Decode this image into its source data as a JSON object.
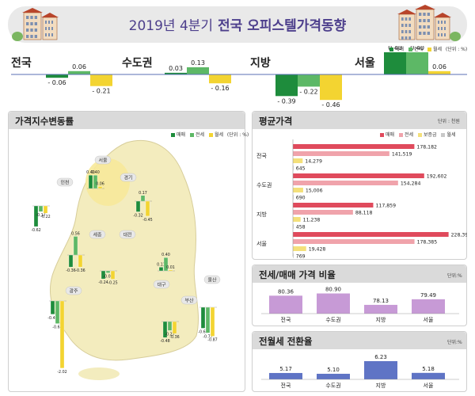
{
  "header": {
    "title_year": "2019년 4분기",
    "title_main": "전국 오피스텔가격동향"
  },
  "colors": {
    "sale": "#1e8c3c",
    "jeonse": "#5db866",
    "monthly": "#f3d431",
    "deposit": "#f4e07a",
    "rent": "#c8c8c8",
    "avg_sale": "#e04a5c",
    "avg_jeonse": "#f0a3ab",
    "ratio_bar": "#c79ad6",
    "conv_bar": "#5f74c5",
    "map_fill": "#f3ecbe"
  },
  "top_summary": [
    {
      "region": "전국",
      "values": [
        -0.06,
        0.06,
        -0.21
      ],
      "labels": [
        "- 0.06",
        "0.06",
        "- 0.21"
      ]
    },
    {
      "region": "수도권",
      "values": [
        0.03,
        0.13,
        -0.16
      ],
      "labels": [
        "0.03",
        "0.13",
        "- 0.16"
      ]
    },
    {
      "region": "지방",
      "values": [
        -0.39,
        -0.22,
        -0.46
      ],
      "labels": [
        "- 0.39",
        "- 0.22",
        "- 0.46"
      ]
    },
    {
      "region": "서울",
      "values": [
        0.4,
        0.4,
        0.06
      ],
      "labels": [
        "0.40",
        "0.40",
        "0.06"
      ]
    }
  ],
  "top_legend": [
    "매매",
    "전세",
    "월세"
  ],
  "top_unit": "(단위 : %)",
  "map_panel": {
    "title": "가격지수변동률",
    "legend": [
      "매매",
      "전세",
      "월세"
    ],
    "unit": "(단위 : %)",
    "regions": [
      {
        "name": "서울",
        "values": [
          0.4,
          0.4,
          0.06
        ],
        "labels": [
          "0.40",
          "0.40",
          "0.06"
        ]
      },
      {
        "name": "인천",
        "values": [
          -0.62,
          -0.17,
          -0.22
        ],
        "labels": [
          "-0.62",
          "-0.17",
          "-0.22"
        ]
      },
      {
        "name": "경기",
        "values": [
          -0.32,
          0.17,
          -0.45
        ],
        "labels": [
          "-0.32",
          "0.17",
          "-0.45"
        ]
      },
      {
        "name": "세종",
        "values": [
          -0.36,
          0.56,
          -0.36
        ],
        "labels": [
          "-0.36",
          "0.56",
          "-0.36"
        ]
      },
      {
        "name": "대전",
        "values": [
          -0.24,
          -0.06,
          -0.25
        ],
        "labels": [
          "-0.24",
          "-0.06",
          "-0.25"
        ]
      },
      {
        "name": "대구",
        "values": [
          0.11,
          0.4,
          0.01
        ],
        "labels": [
          "0.11",
          "0.40",
          "0.01"
        ]
      },
      {
        "name": "광주",
        "values": [
          -0.4,
          -0.68,
          -2.02
        ],
        "labels": [
          "-0.40",
          "-0.68",
          "-2.02"
        ]
      },
      {
        "name": "부산",
        "values": [
          -0.48,
          -0.27,
          -0.36
        ],
        "labels": [
          "-0.48",
          "-0.27",
          "-0.36"
        ]
      },
      {
        "name": "울산",
        "values": [
          -0.63,
          -0.77,
          -0.87
        ],
        "labels": [
          "-0.63",
          "-0.77",
          "-0.87"
        ]
      }
    ]
  },
  "avg_price": {
    "title": "평균가격",
    "unit": "단위 : 천원",
    "legend": [
      "매매",
      "전세",
      "보증금",
      "월세"
    ],
    "groups": [
      {
        "name": "전국",
        "values": [
          178182,
          141519,
          14279,
          645
        ],
        "labels": [
          "178,182",
          "141,519",
          "14,279",
          "645"
        ]
      },
      {
        "name": "수도권",
        "values": [
          192602,
          154284,
          15006,
          690
        ],
        "labels": [
          "192,602",
          "154,284",
          "15,006",
          "690"
        ]
      },
      {
        "name": "지방",
        "values": [
          117859,
          88118,
          11238,
          458
        ],
        "labels": [
          "117,859",
          "88,118",
          "11,238",
          "458"
        ]
      },
      {
        "name": "서울",
        "values": [
          228393,
          178385,
          19428,
          769
        ],
        "labels": [
          "228,393",
          "178,385",
          "19,428",
          "769"
        ]
      }
    ]
  },
  "ratio": {
    "title": "전세/매매 가격 비율",
    "unit": "단위:%",
    "categories": [
      "전국",
      "수도권",
      "지방",
      "서울"
    ],
    "values": [
      80.36,
      80.9,
      78.13,
      79.49
    ],
    "labels": [
      "80.36",
      "80.90",
      "78.13",
      "79.49"
    ]
  },
  "conversion": {
    "title": "전월세 전환율",
    "unit": "단위:%",
    "categories": [
      "전국",
      "수도권",
      "지방",
      "서울"
    ],
    "values": [
      5.17,
      5.1,
      6.23,
      5.18
    ],
    "labels": [
      "5.17",
      "5.10",
      "6.23",
      "5.18"
    ]
  },
  "chart_data": [
    {
      "type": "bar",
      "categories": [
        "전국",
        "수도권",
        "지방",
        "서울"
      ],
      "series": [
        {
          "name": "매매",
          "values": [
            -0.06,
            0.03,
            -0.39,
            0.4
          ]
        },
        {
          "name": "전세",
          "values": [
            0.06,
            0.13,
            -0.22,
            0.4
          ]
        },
        {
          "name": "월세",
          "values": [
            -0.21,
            -0.16,
            -0.46,
            0.06
          ]
        }
      ]
    },
    {
      "type": "bar",
      "title": "가격지수변동률",
      "categories": [
        "서울",
        "인천",
        "경기",
        "세종",
        "대전",
        "대구",
        "광주",
        "부산",
        "울산"
      ],
      "series": [
        {
          "name": "매매",
          "values": [
            0.4,
            -0.62,
            -0.32,
            -0.36,
            -0.24,
            0.11,
            -0.4,
            -0.48,
            -0.63
          ]
        },
        {
          "name": "전세",
          "values": [
            0.4,
            -0.17,
            0.17,
            0.56,
            -0.06,
            0.4,
            -0.68,
            -0.27,
            -0.77
          ]
        },
        {
          "name": "월세",
          "values": [
            0.06,
            -0.22,
            -0.45,
            -0.36,
            -0.25,
            0.01,
            -2.02,
            -0.36,
            -0.87
          ]
        }
      ]
    },
    {
      "type": "bar",
      "title": "평균가격",
      "categories": [
        "전국",
        "수도권",
        "지방",
        "서울"
      ],
      "series": [
        {
          "name": "매매",
          "values": [
            178182,
            192602,
            117859,
            228393
          ]
        },
        {
          "name": "전세",
          "values": [
            141519,
            154284,
            88118,
            178385
          ]
        },
        {
          "name": "보증금",
          "values": [
            14279,
            15006,
            11238,
            19428
          ]
        },
        {
          "name": "월세",
          "values": [
            645,
            690,
            458,
            769
          ]
        }
      ]
    },
    {
      "type": "bar",
      "title": "전세/매매 가격 비율",
      "categories": [
        "전국",
        "수도권",
        "지방",
        "서울"
      ],
      "values": [
        80.36,
        80.9,
        78.13,
        79.49
      ]
    },
    {
      "type": "bar",
      "title": "전월세 전환율",
      "categories": [
        "전국",
        "수도권",
        "지방",
        "서울"
      ],
      "values": [
        5.17,
        5.1,
        6.23,
        5.18
      ]
    }
  ]
}
